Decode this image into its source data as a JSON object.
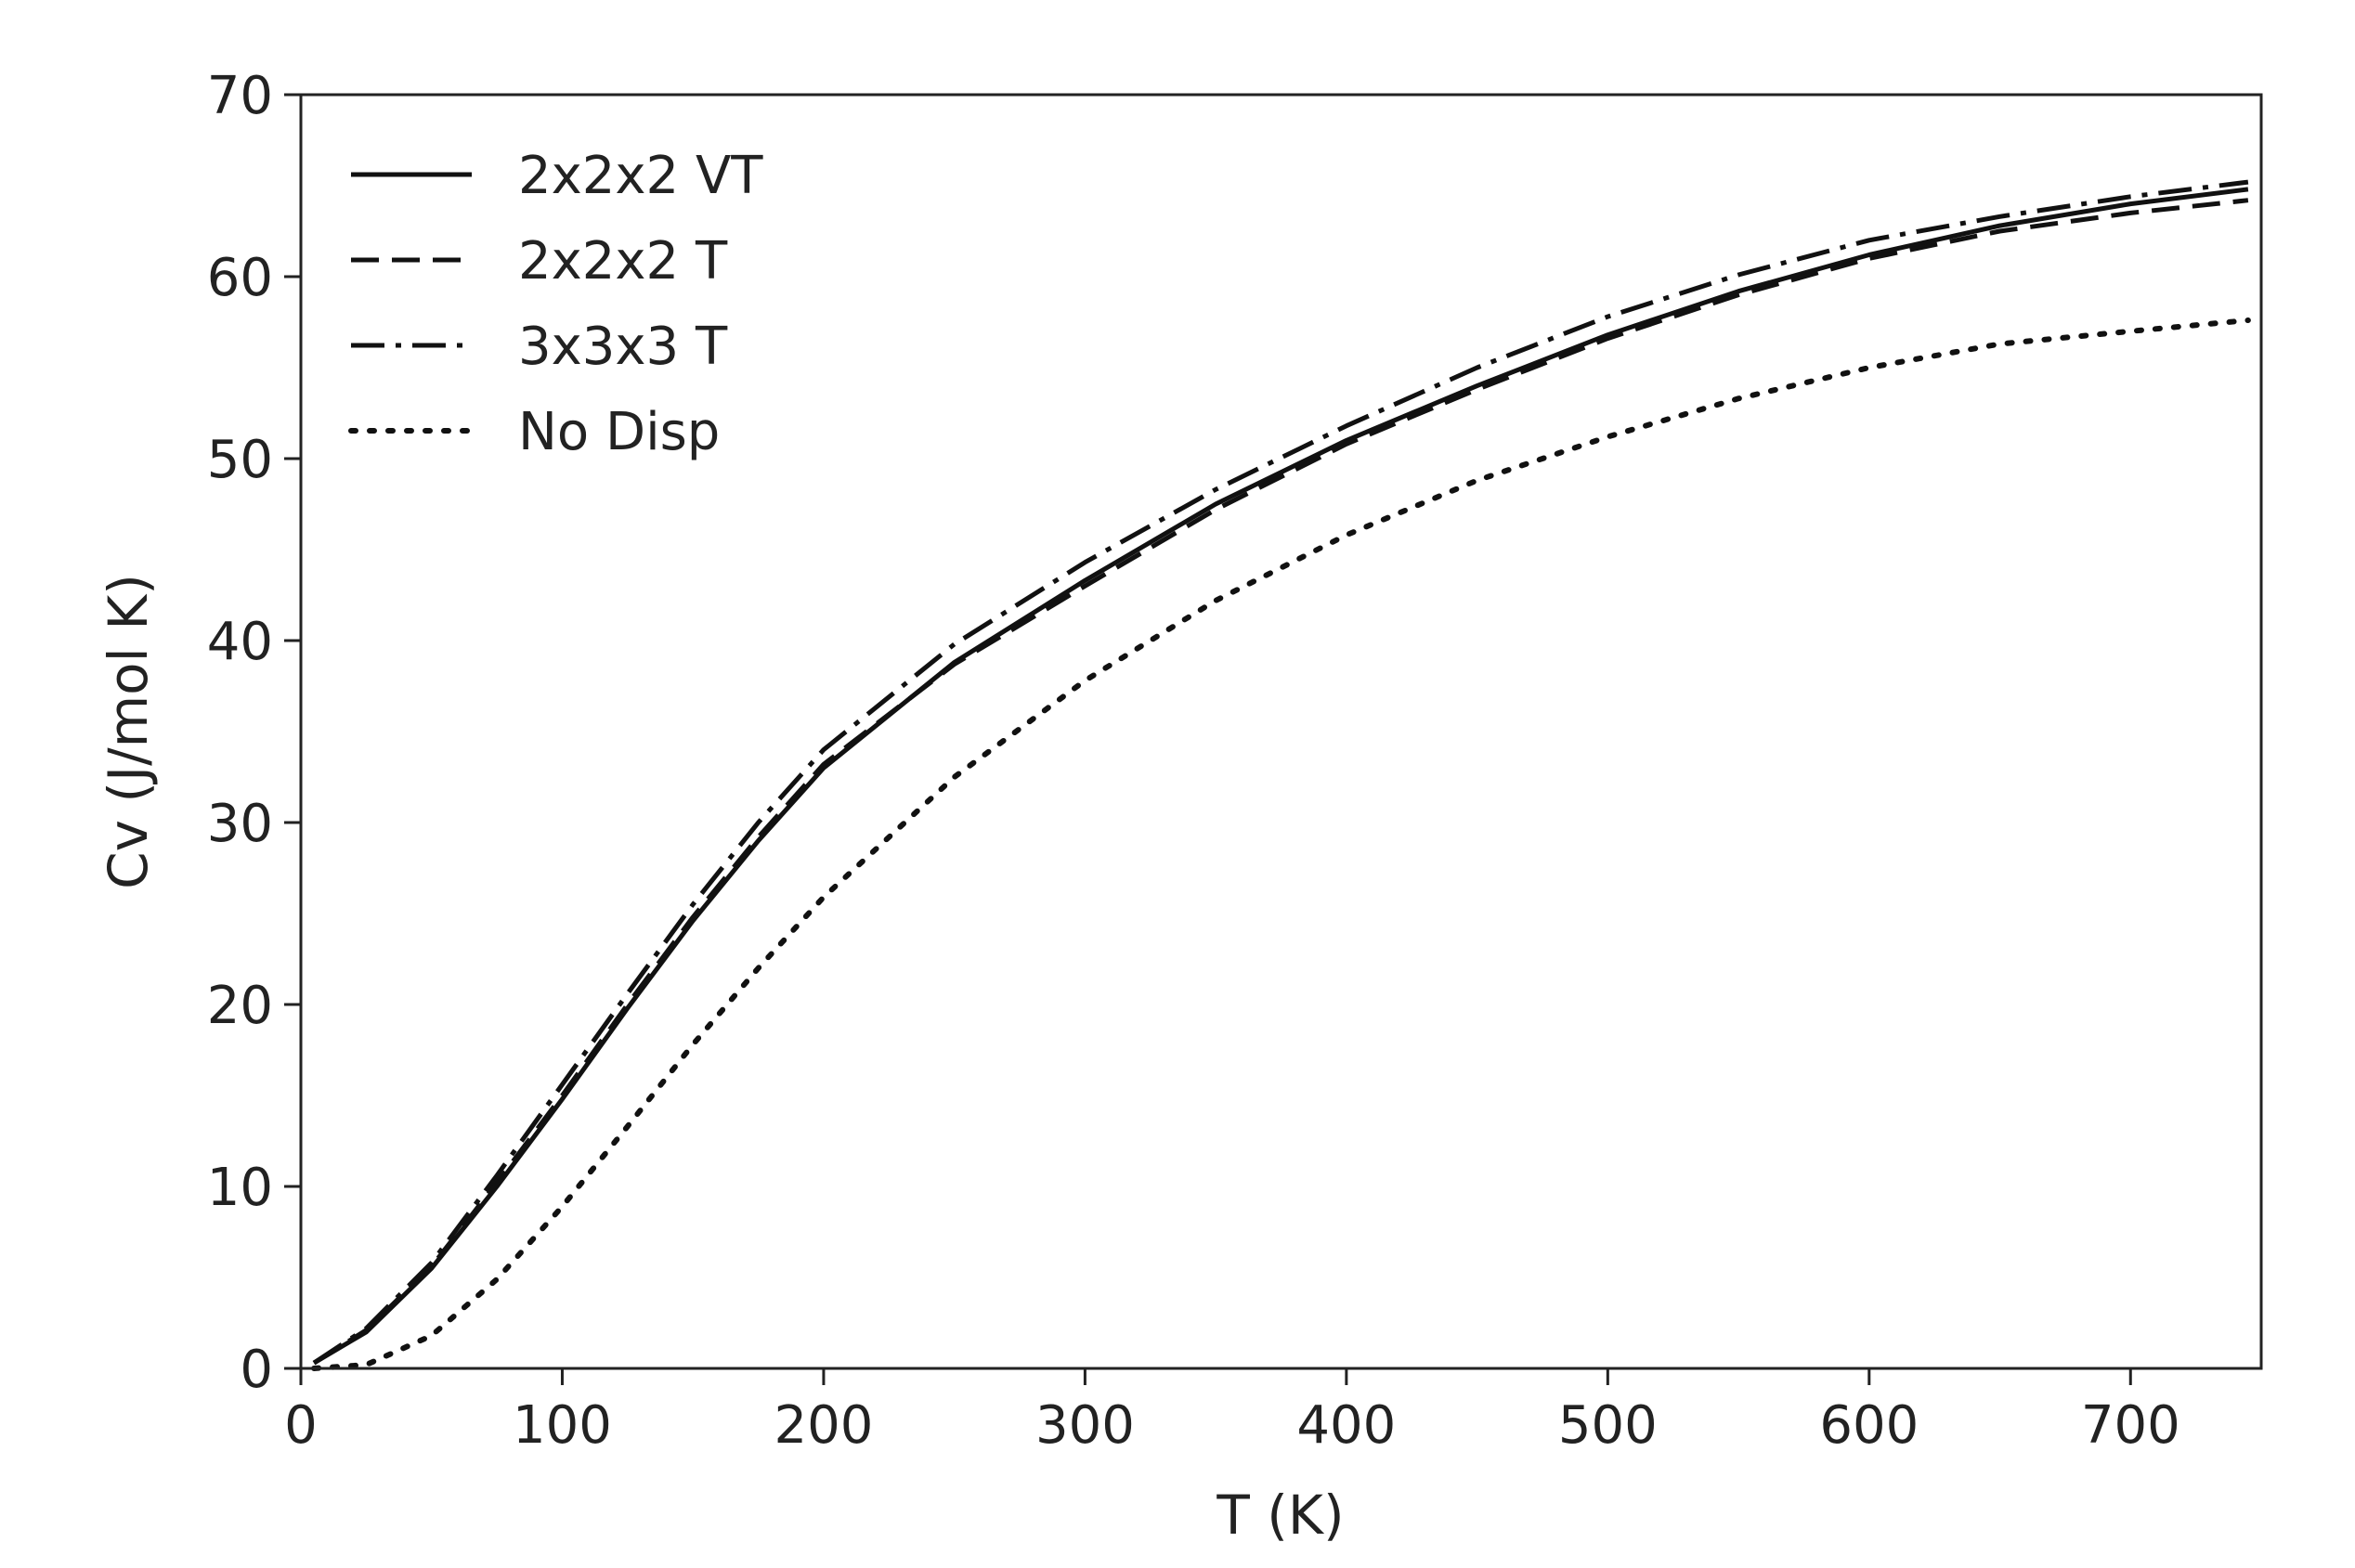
{
  "chart_data": {
    "type": "line",
    "title": "",
    "xlabel": "T (K)",
    "ylabel": "Cv (J/mol K)",
    "xlim": [
      0,
      750
    ],
    "ylim": [
      0,
      70
    ],
    "xticks": [
      0,
      100,
      200,
      300,
      400,
      500,
      600,
      700
    ],
    "yticks": [
      0,
      10,
      20,
      30,
      40,
      50,
      60,
      70
    ],
    "grid": false,
    "legend_position": "top-left",
    "x": [
      5,
      25,
      50,
      75,
      100,
      125,
      150,
      175,
      200,
      250,
      300,
      350,
      400,
      450,
      500,
      550,
      600,
      650,
      700,
      745
    ],
    "series": [
      {
        "name": "2x2x2 VT",
        "linestyle": "solid",
        "values": [
          0.3,
          2.0,
          5.5,
          10.0,
          14.8,
          19.8,
          24.6,
          29.0,
          33.0,
          38.8,
          43.3,
          47.5,
          51.0,
          54.0,
          56.8,
          59.2,
          61.2,
          62.8,
          64.0,
          64.8
        ]
      },
      {
        "name": "2x2x2 T",
        "linestyle": "dashed",
        "values": [
          0.3,
          2.1,
          5.6,
          10.2,
          15.0,
          20.0,
          24.8,
          29.2,
          33.2,
          38.7,
          43.0,
          47.2,
          50.8,
          53.8,
          56.6,
          59.0,
          61.0,
          62.5,
          63.5,
          64.2
        ]
      },
      {
        "name": "3x3x3 T",
        "linestyle": "dashdot",
        "values": [
          0.3,
          2.2,
          5.8,
          10.6,
          15.6,
          20.6,
          25.5,
          30.0,
          34.0,
          39.8,
          44.3,
          48.3,
          51.8,
          55.0,
          57.8,
          60.1,
          62.0,
          63.3,
          64.4,
          65.2
        ]
      },
      {
        "name": "No Disp",
        "linestyle": "dotted",
        "values": [
          0.0,
          0.2,
          1.8,
          4.9,
          8.9,
          13.3,
          17.8,
          22.0,
          25.9,
          32.5,
          37.8,
          42.2,
          45.8,
          48.8,
          51.2,
          53.3,
          55.0,
          56.3,
          57.0,
          57.6
        ]
      }
    ]
  }
}
